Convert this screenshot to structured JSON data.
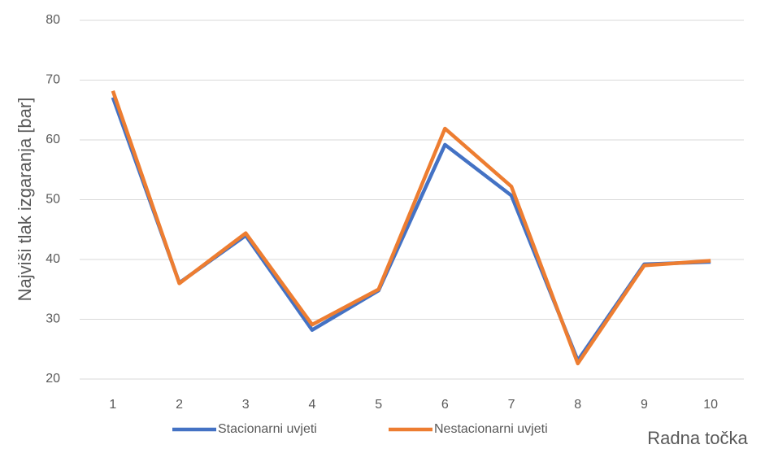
{
  "chart_data": {
    "type": "line",
    "y_label": "Najviši tlak izgaranja [bar]",
    "x_label": "Radna točka",
    "categories": [
      "1",
      "2",
      "3",
      "4",
      "5",
      "6",
      "7",
      "8",
      "9",
      "10"
    ],
    "series": [
      {
        "name": "Stacionarni uvjeti",
        "color": "#4472c4",
        "values": [
          67.1,
          36.1,
          44.0,
          28.2,
          34.8,
          59.2,
          50.7,
          23.1,
          39.2,
          39.6
        ]
      },
      {
        "name": "Nestacionarni uvjeti",
        "color": "#ed7d31",
        "values": [
          68.2,
          36.0,
          44.4,
          29.1,
          35.0,
          61.9,
          52.2,
          22.6,
          39.0,
          39.8
        ]
      }
    ],
    "ylim": [
      20,
      80
    ],
    "yticks": [
      20,
      30,
      40,
      50,
      60,
      70,
      80
    ],
    "grid": true
  }
}
